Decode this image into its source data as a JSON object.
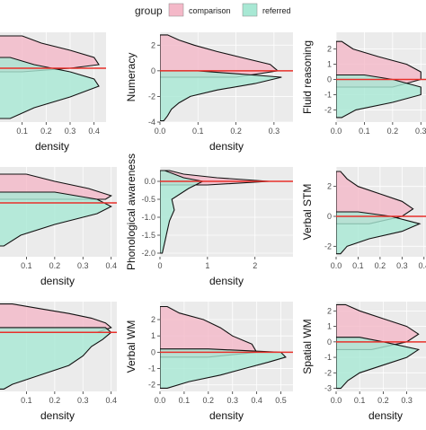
{
  "legend": {
    "title": "group",
    "items": [
      {
        "label": "comparison",
        "color": "#F4B8C8"
      },
      {
        "label": "referred",
        "color": "#A8E8D4"
      }
    ]
  },
  "colors": {
    "comparison": "#F4B8C8",
    "referred": "#A8E8D4",
    "overlap": "#AFC2B3",
    "panel_bg": "#EBEBEB",
    "grid": "#FFFFFF",
    "refline": "#E8302A",
    "axis_text": "#4D4D4D"
  },
  "chart_data": [
    {
      "type": "area",
      "ylabel": "",
      "xlabel": "density",
      "xlim": [
        0,
        0.45
      ],
      "xticks": [
        "0.1",
        "0.2",
        "0.3",
        "0.4"
      ],
      "xtick_values": [
        0.1,
        0.2,
        0.3,
        0.4
      ],
      "ylim": [
        -1.5,
        1.0
      ],
      "yticks": [],
      "ytick_values": [],
      "refline_y": 0,
      "series": [
        {
          "name": "comparison",
          "y": [
            0.9,
            0.7,
            0.5,
            0.3,
            0.1,
            0.0,
            -0.1
          ],
          "density": [
            0.1,
            0.18,
            0.3,
            0.4,
            0.42,
            0.3,
            0.1
          ]
        },
        {
          "name": "referred",
          "y": [
            0.3,
            0.1,
            -0.1,
            -0.3,
            -0.5,
            -0.8,
            -1.1,
            -1.4
          ],
          "density": [
            0.05,
            0.15,
            0.3,
            0.4,
            0.42,
            0.3,
            0.15,
            0.05
          ]
        }
      ]
    },
    {
      "type": "area",
      "ylabel": "Numeracy",
      "xlabel": "density",
      "xlim": [
        0,
        0.35
      ],
      "xticks": [
        "0.0",
        "0.1",
        "0.2",
        "0.3"
      ],
      "xtick_values": [
        0,
        0.1,
        0.2,
        0.3
      ],
      "ylim": [
        -4,
        3
      ],
      "yticks": [
        "2",
        "0",
        "-2",
        "-4"
      ],
      "ytick_values": [
        2,
        0,
        -2,
        -4
      ],
      "refline_y": 0,
      "series": [
        {
          "name": "comparison",
          "y": [
            2.8,
            2.4,
            2.0,
            1.5,
            1.0,
            0.5,
            0.0,
            -0.5
          ],
          "density": [
            0.02,
            0.05,
            0.09,
            0.15,
            0.22,
            0.29,
            0.31,
            0.2
          ]
        },
        {
          "name": "referred",
          "y": [
            0.0,
            -0.5,
            -1.0,
            -1.5,
            -2.0,
            -2.5,
            -3.0,
            -3.5,
            -3.9
          ],
          "density": [
            0.1,
            0.32,
            0.25,
            0.15,
            0.08,
            0.05,
            0.03,
            0.02,
            0.01
          ]
        }
      ]
    },
    {
      "type": "area",
      "ylabel": "Fluid reasoning",
      "xlabel": "",
      "xlim": [
        0,
        0.35
      ],
      "xticks": [
        "0.0",
        "0.1",
        "0.2",
        "0.3"
      ],
      "xtick_values": [
        0,
        0.1,
        0.2,
        0.3
      ],
      "ylim": [
        -2.8,
        3.1
      ],
      "yticks": [
        "2",
        "1",
        "0",
        "-1",
        "-2"
      ],
      "ytick_values": [
        2,
        1,
        0,
        -1,
        -2
      ],
      "refline_y": 0,
      "series": [
        {
          "name": "comparison",
          "y": [
            2.5,
            2.0,
            1.5,
            1.0,
            0.5,
            0.0,
            -0.5
          ],
          "density": [
            0.02,
            0.06,
            0.15,
            0.25,
            0.3,
            0.3,
            0.2
          ]
        },
        {
          "name": "referred",
          "y": [
            0.3,
            0.0,
            -0.5,
            -1.0,
            -1.5,
            -2.0,
            -2.5
          ],
          "density": [
            0.1,
            0.2,
            0.3,
            0.3,
            0.2,
            0.07,
            0.02
          ]
        }
      ]
    },
    {
      "type": "area",
      "ylabel": "",
      "xlabel": "density",
      "xlim": [
        0,
        0.42
      ],
      "xticks": [
        "0.1",
        "0.2",
        "0.3",
        "0.4"
      ],
      "xtick_values": [
        0.1,
        0.2,
        0.3,
        0.4
      ],
      "ylim": [
        -1.5,
        1.0
      ],
      "yticks": [],
      "ytick_values": [],
      "refline_y": 0,
      "series": [
        {
          "name": "comparison",
          "y": [
            0.8,
            0.6,
            0.4,
            0.2,
            0.1
          ],
          "density": [
            0.1,
            0.2,
            0.32,
            0.4,
            0.38
          ]
        },
        {
          "name": "referred",
          "y": [
            0.3,
            0.1,
            -0.1,
            -0.3,
            -0.6,
            -0.9,
            -1.2
          ],
          "density": [
            0.2,
            0.35,
            0.4,
            0.35,
            0.2,
            0.08,
            0.02
          ]
        }
      ]
    },
    {
      "type": "area",
      "ylabel": "Phonological awareness",
      "xlabel": "density",
      "xlim": [
        0,
        2.8
      ],
      "xticks": [
        "0",
        "1",
        "2"
      ],
      "xtick_values": [
        0,
        1,
        2
      ],
      "ylim": [
        -2.1,
        0.4
      ],
      "yticks": [
        "0.0",
        "-0.5",
        "-1.0",
        "-1.5",
        "-2.0"
      ],
      "ytick_values": [
        0,
        -0.5,
        -1,
        -1.5,
        -2
      ],
      "refline_y": 0,
      "series": [
        {
          "name": "comparison",
          "y": [
            0.3,
            0.2,
            0.1,
            0.0,
            -0.1
          ],
          "density": [
            0.2,
            0.5,
            1.2,
            2.3,
            1.0
          ]
        },
        {
          "name": "referred",
          "y": [
            0.3,
            0.1,
            0.0,
            -0.2,
            -0.5,
            -0.8,
            -1.1,
            -1.4,
            -1.7,
            -2.0
          ],
          "density": [
            0.1,
            0.5,
            0.9,
            0.6,
            0.25,
            0.3,
            0.2,
            0.15,
            0.1,
            0.05
          ]
        }
      ]
    },
    {
      "type": "area",
      "ylabel": "Verbal STM",
      "xlabel": "",
      "xlim": [
        0,
        0.45
      ],
      "xticks": [
        "0.0",
        "0.1",
        "0.2",
        "0.3",
        "0.4"
      ],
      "xtick_values": [
        0,
        0.1,
        0.2,
        0.3,
        0.4
      ],
      "ylim": [
        -2.7,
        3.3
      ],
      "yticks": [
        "2",
        "0",
        "-2"
      ],
      "ytick_values": [
        2,
        0,
        -2
      ],
      "refline_y": 0,
      "series": [
        {
          "name": "comparison",
          "y": [
            3.0,
            2.5,
            2.0,
            1.5,
            1.0,
            0.5,
            0.0,
            -0.5
          ],
          "density": [
            0.02,
            0.05,
            0.1,
            0.2,
            0.3,
            0.35,
            0.3,
            0.15
          ]
        },
        {
          "name": "referred",
          "y": [
            0.3,
            0.0,
            -0.5,
            -1.0,
            -1.5,
            -2.0,
            -2.5
          ],
          "density": [
            0.1,
            0.25,
            0.38,
            0.3,
            0.15,
            0.05,
            0.02
          ]
        }
      ]
    },
    {
      "type": "area",
      "ylabel": "",
      "xlabel": "density",
      "xlim": [
        0,
        0.42
      ],
      "xticks": [
        "0.1",
        "0.2",
        "0.3",
        "0.4"
      ],
      "xtick_values": [
        0.1,
        0.2,
        0.3,
        0.4
      ],
      "ylim": [
        -2.5,
        1.3
      ],
      "yticks": [],
      "ytick_values": [],
      "refline_y": 0,
      "series": [
        {
          "name": "comparison",
          "y": [
            1.2,
            1.0,
            0.8,
            0.6,
            0.4,
            0.2,
            0.0
          ],
          "density": [
            0.05,
            0.15,
            0.25,
            0.33,
            0.38,
            0.4,
            0.35
          ]
        },
        {
          "name": "referred",
          "y": [
            0.2,
            0.0,
            -0.3,
            -0.6,
            -1.0,
            -1.4,
            -1.8,
            -2.2,
            -2.4
          ],
          "density": [
            0.38,
            0.4,
            0.37,
            0.33,
            0.3,
            0.25,
            0.15,
            0.05,
            0.02
          ]
        }
      ]
    },
    {
      "type": "area",
      "ylabel": "Verbal WM",
      "xlabel": "density",
      "xlim": [
        0,
        0.55
      ],
      "xticks": [
        "0.0",
        "0.1",
        "0.2",
        "0.3",
        "0.4",
        "0.5"
      ],
      "xtick_values": [
        0,
        0.1,
        0.2,
        0.3,
        0.4,
        0.5
      ],
      "ylim": [
        -2.4,
        3.1
      ],
      "yticks": [
        "2",
        "1",
        "0",
        "-1",
        "-2"
      ],
      "ytick_values": [
        2,
        1,
        0,
        -1,
        -2
      ],
      "refline_y": 0,
      "series": [
        {
          "name": "comparison",
          "y": [
            2.8,
            2.4,
            2.0,
            1.5,
            1.0,
            0.5,
            0.0,
            -0.3
          ],
          "density": [
            0.03,
            0.08,
            0.18,
            0.25,
            0.3,
            0.38,
            0.4,
            0.2
          ]
        },
        {
          "name": "referred",
          "y": [
            0.2,
            0.0,
            -0.3,
            -0.6,
            -1.0,
            -1.4,
            -1.8,
            -2.2
          ],
          "density": [
            0.2,
            0.5,
            0.52,
            0.45,
            0.35,
            0.25,
            0.12,
            0.03
          ]
        }
      ]
    },
    {
      "type": "area",
      "ylabel": "Spatial WM",
      "xlabel": "density",
      "xlim": [
        0,
        0.42
      ],
      "xticks": [
        "0.0",
        "0.1",
        "0.2",
        "0.3"
      ],
      "xtick_values": [
        0,
        0.1,
        0.2,
        0.3
      ],
      "ylim": [
        -3.2,
        2.6
      ],
      "yticks": [
        "2",
        "1",
        "0",
        "-1",
        "-2",
        "-3"
      ],
      "ytick_values": [
        2,
        1,
        0,
        -1,
        -2,
        -3
      ],
      "refline_y": 0,
      "series": [
        {
          "name": "comparison",
          "y": [
            2.4,
            2.0,
            1.5,
            1.0,
            0.5,
            0.0,
            -0.5
          ],
          "density": [
            0.04,
            0.1,
            0.2,
            0.3,
            0.35,
            0.3,
            0.15
          ]
        },
        {
          "name": "referred",
          "y": [
            0.3,
            0.0,
            -0.5,
            -1.0,
            -1.5,
            -2.0,
            -2.5,
            -3.0
          ],
          "density": [
            0.1,
            0.2,
            0.35,
            0.3,
            0.2,
            0.1,
            0.05,
            0.02
          ]
        }
      ]
    }
  ]
}
